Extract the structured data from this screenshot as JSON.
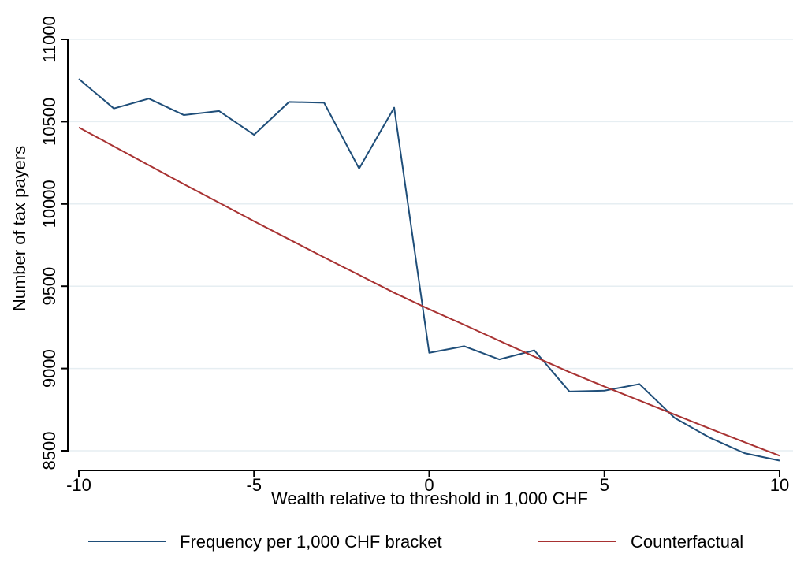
{
  "chart_data": {
    "type": "line",
    "xlabel": "Wealth relative to threshold in 1,000 CHF",
    "ylabel": "Number of tax payers",
    "xlim": [
      -10,
      10
    ],
    "ylim": [
      8500,
      11000
    ],
    "x_ticks": [
      -10,
      -5,
      0,
      5,
      10
    ],
    "x_tick_labels": [
      "-10",
      "-5",
      "0",
      "5",
      "10"
    ],
    "y_ticks": [
      8500,
      9000,
      9500,
      10000,
      10500,
      11000
    ],
    "y_tick_labels": [
      "8500",
      "9000",
      "9500",
      "10000",
      "10500",
      "11000"
    ],
    "grid": true,
    "legend_position": "bottom",
    "series": [
      {
        "name": "Frequency per 1,000 CHF bracket",
        "color": "#1f4e79",
        "x": [
          -10,
          -9,
          -8,
          -7,
          -6,
          -5,
          -4,
          -3,
          -2,
          -1,
          0,
          1,
          2,
          3,
          4,
          5,
          6,
          7,
          8,
          9,
          10
        ],
        "values": [
          10760,
          10580,
          10640,
          10540,
          10565,
          10420,
          10620,
          10615,
          10215,
          10585,
          9095,
          9135,
          9055,
          9110,
          8860,
          8865,
          8905,
          8700,
          8580,
          8485,
          8440
        ]
      },
      {
        "name": "Counterfactual",
        "color": "#a83232",
        "x": [
          -10,
          -9,
          -8,
          -7,
          -6,
          -5,
          -4,
          -3,
          -2,
          -1,
          0,
          1,
          2,
          3,
          4,
          5,
          6,
          7,
          8,
          9,
          10
        ],
        "values": [
          10465,
          10350,
          10235,
          10120,
          10008,
          9895,
          9785,
          9675,
          9568,
          9460,
          9360,
          9265,
          9168,
          9072,
          8978,
          8890,
          8805,
          8720,
          8635,
          8552,
          8470
        ]
      }
    ]
  }
}
